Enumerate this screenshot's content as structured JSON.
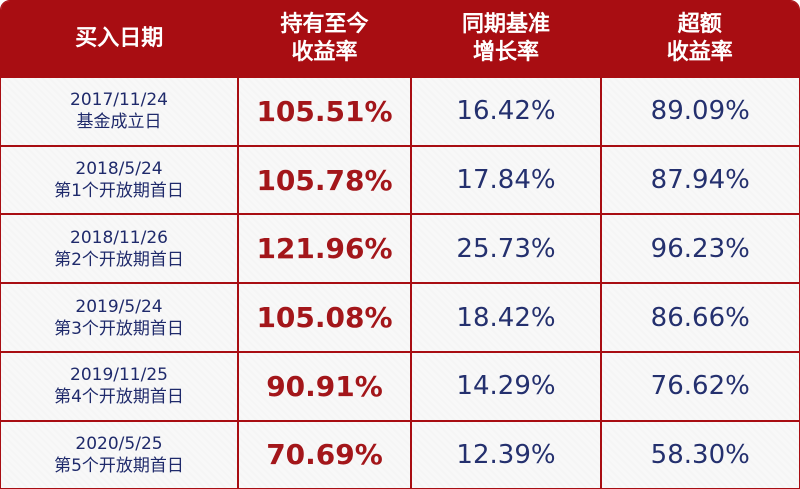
{
  "headers": [
    [
      "买入日期",
      ""
    ],
    [
      "持有至今",
      "收益率"
    ],
    [
      "同期基准",
      "增长率"
    ],
    [
      "超额",
      "收益率"
    ]
  ],
  "rows": [
    {
      "date": "2017/11/24",
      "label": "基金成立日",
      "hold": "105.51%",
      "bench": "16.42%",
      "excess": "89.09%"
    },
    {
      "date": "2018/5/24",
      "label": "第1个开放期首日",
      "hold": "105.78%",
      "bench": "17.84%",
      "excess": "87.94%"
    },
    {
      "date": "2018/11/26",
      "label": "第2个开放期首日",
      "hold": "121.96%",
      "bench": "25.73%",
      "excess": "96.23%"
    },
    {
      "date": "2019/5/24",
      "label": "第3个开放期首日",
      "hold": "105.08%",
      "bench": "18.42%",
      "excess": "86.66%"
    },
    {
      "date": "2019/11/25",
      "label": "第4个开放期首日",
      "hold": "90.91%",
      "bench": "14.29%",
      "excess": "76.62%"
    },
    {
      "date": "2020/5/25",
      "label": "第5个开放期首日",
      "hold": "70.69%",
      "bench": "12.39%",
      "excess": "58.30%"
    }
  ],
  "colors": {
    "header": "#a80d12",
    "hold_value": "#a3161a",
    "other_value": "#24306e"
  }
}
